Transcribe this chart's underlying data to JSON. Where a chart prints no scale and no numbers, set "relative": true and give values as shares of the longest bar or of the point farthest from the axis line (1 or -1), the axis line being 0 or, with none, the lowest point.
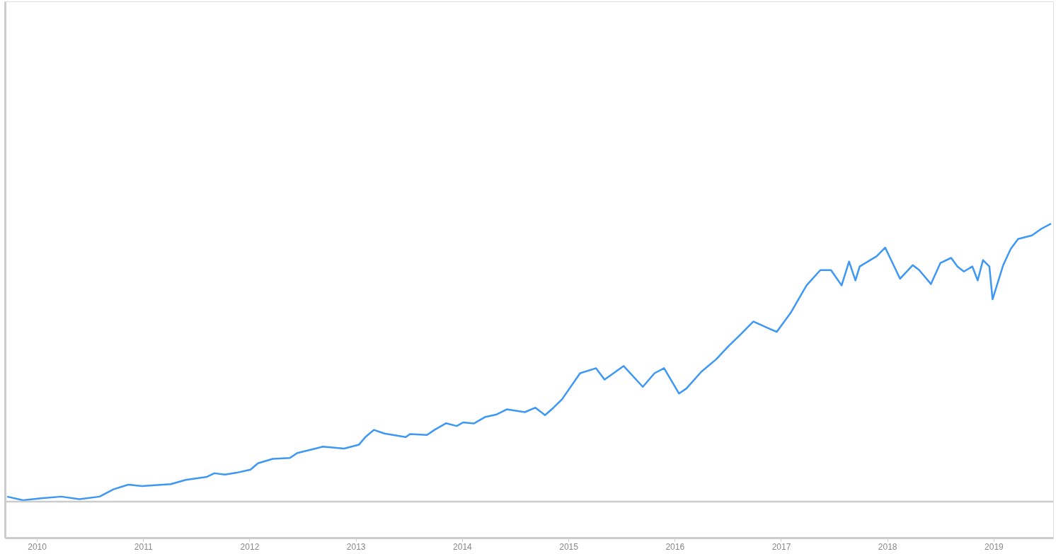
{
  "chart_data": {
    "type": "line",
    "relative": true,
    "grid": false,
    "legend": false,
    "marker": "none",
    "line_style": "solid",
    "xlim": [
      2009.7,
      2019.56
    ],
    "xticks": [
      2010,
      2011,
      2012,
      2013,
      2014,
      2015,
      2016,
      2017,
      2018,
      2019
    ],
    "x": [
      2009.72,
      2009.87,
      2010.04,
      2010.23,
      2010.4,
      2010.59,
      2010.72,
      2010.86,
      2010.99,
      2011.26,
      2011.4,
      2011.6,
      2011.67,
      2011.77,
      2011.88,
      2012.01,
      2012.08,
      2012.22,
      2012.38,
      2012.45,
      2012.62,
      2012.69,
      2012.89,
      2013.03,
      2013.09,
      2013.17,
      2013.27,
      2013.47,
      2013.51,
      2013.67,
      2013.74,
      2013.85,
      2013.95,
      2014.01,
      2014.11,
      2014.22,
      2014.32,
      2014.42,
      2014.59,
      2014.69,
      2014.78,
      2014.86,
      2014.94,
      2015.11,
      2015.26,
      2015.34,
      2015.52,
      2015.7,
      2015.81,
      2015.9,
      2016.04,
      2016.11,
      2016.25,
      2016.39,
      2016.51,
      2016.61,
      2016.74,
      2016.88,
      2016.96,
      2017.09,
      2017.24,
      2017.37,
      2017.47,
      2017.57,
      2017.64,
      2017.7,
      2017.74,
      2017.9,
      2017.98,
      2018.12,
      2018.24,
      2018.3,
      2018.41,
      2018.5,
      2018.6,
      2018.66,
      2018.72,
      2018.8,
      2018.85,
      2018.9,
      2018.96,
      2018.99,
      2019.09,
      2019.16,
      2019.23,
      2019.36,
      2019.45,
      2019.54
    ],
    "series": [
      {
        "color": "#3d97f5",
        "values": [
          0.018,
          0.005,
          0.012,
          0.018,
          0.009,
          0.018,
          0.044,
          0.061,
          0.056,
          0.063,
          0.078,
          0.089,
          0.102,
          0.097,
          0.104,
          0.115,
          0.138,
          0.154,
          0.157,
          0.175,
          0.191,
          0.198,
          0.191,
          0.205,
          0.232,
          0.258,
          0.245,
          0.232,
          0.243,
          0.24,
          0.258,
          0.282,
          0.272,
          0.285,
          0.281,
          0.305,
          0.313,
          0.332,
          0.322,
          0.338,
          0.311,
          0.338,
          0.368,
          0.462,
          0.48,
          0.439,
          0.488,
          0.413,
          0.462,
          0.48,
          0.389,
          0.407,
          0.467,
          0.512,
          0.561,
          0.598,
          0.648,
          0.624,
          0.611,
          0.679,
          0.778,
          0.833,
          0.833,
          0.778,
          0.864,
          0.796,
          0.846,
          0.883,
          0.914,
          0.802,
          0.851,
          0.833,
          0.783,
          0.859,
          0.877,
          0.846,
          0.828,
          0.846,
          0.796,
          0.869,
          0.846,
          0.728,
          0.851,
          0.909,
          0.945,
          0.958,
          0.982,
          1.0
        ]
      }
    ]
  }
}
